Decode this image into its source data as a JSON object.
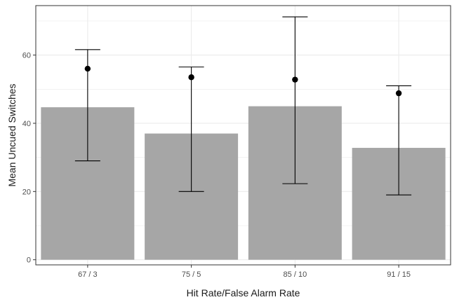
{
  "chart_data": {
    "type": "bar",
    "xlabel": "Hit Rate/False Alarm Rate",
    "ylabel": "Mean Uncued Switches",
    "categories": [
      "67 / 3",
      "75 / 5",
      "85 / 10",
      "91 / 15"
    ],
    "values": [
      44.7,
      37.0,
      45.0,
      32.8
    ],
    "points": [
      56.0,
      53.5,
      52.8,
      48.8
    ],
    "error_bars": [
      {
        "low": 29.0,
        "high": 61.6
      },
      {
        "low": 20.0,
        "high": 56.5
      },
      {
        "low": 22.3,
        "high": 71.2
      },
      {
        "low": 19.0,
        "high": 51.0
      }
    ],
    "ylim": [
      -1.5,
      74.5
    ],
    "yticks": [
      0,
      20,
      40,
      60
    ],
    "grid": true,
    "bar_color": "#a6a6a6",
    "grid_color": "#ebebeb",
    "panel_border_color": "#333333",
    "error_bar_color": "#000000",
    "point_color": "#000000"
  }
}
